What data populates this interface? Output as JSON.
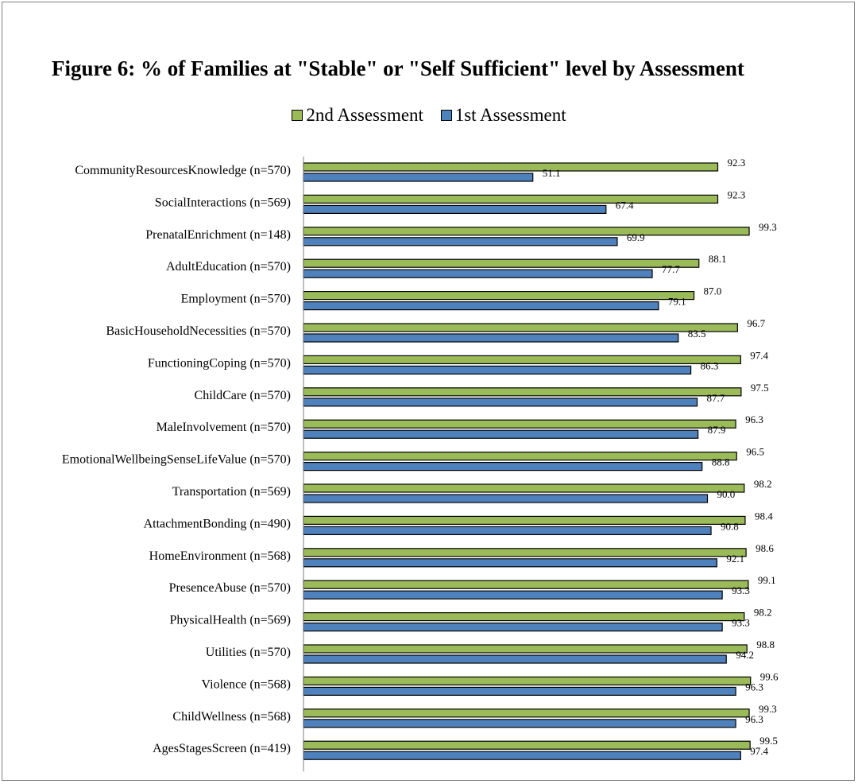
{
  "chart_data": {
    "type": "bar",
    "orientation": "horizontal",
    "title": "Figure 6: % of Families at \"Stable\" or \"Self Sufficient\" level by Assessment",
    "legend_position": "top",
    "xlim": [
      0,
      100
    ],
    "grid": false,
    "categories": [
      "CommunityResourcesKnowledge (n=570)",
      "SocialInteractions (n=569)",
      "PrenatalEnrichment (n=148)",
      "AdultEducation (n=570)",
      "Employment (n=570)",
      "BasicHouseholdNecessities (n=570)",
      "FunctioningCoping (n=570)",
      "ChildCare (n=570)",
      "MaleInvolvement (n=570)",
      "EmotionalWellbeingSenseLifeValue (n=570)",
      "Transportation (n=569)",
      "AttachmentBonding (n=490)",
      "HomeEnvironment (n=568)",
      "PresenceAbuse (n=570)",
      "PhysicalHealth (n=569)",
      "Utilities (n=570)",
      "Violence (n=568)",
      "ChildWellness (n=568)",
      "AgesStagesScreen (n=419)"
    ],
    "series": [
      {
        "name": "2nd Assessment",
        "color": "#9bbb59",
        "values": [
          92.3,
          92.3,
          99.3,
          88.1,
          87.0,
          96.7,
          97.4,
          97.5,
          96.3,
          96.5,
          98.2,
          98.4,
          98.6,
          99.1,
          98.2,
          98.8,
          99.6,
          99.3,
          99.5
        ],
        "labels": [
          "92.3",
          "92.3",
          "99.3",
          "88.1",
          "87.0",
          "96.7",
          "97.4",
          "97.5",
          "96.3",
          "96.5",
          "98.2",
          "98.4",
          "98.6",
          "99.1",
          "98.2",
          "98.8",
          "99.6",
          "99.3",
          "99.5"
        ]
      },
      {
        "name": "1st Assessment",
        "color": "#4f81bd",
        "values": [
          51.1,
          67.4,
          69.9,
          77.7,
          79.1,
          83.5,
          86.3,
          87.7,
          87.9,
          88.8,
          90.0,
          90.8,
          92.1,
          93.3,
          93.3,
          94.2,
          96.3,
          96.3,
          97.4
        ],
        "labels": [
          "51.1",
          "67.4",
          "69.9",
          "77.7",
          "79.1",
          "83.5",
          "86.3",
          "87.7",
          "87.9",
          "88.8",
          "90.0",
          "90.8",
          "92.1",
          "93.3",
          "93.3",
          "94.2",
          "96.3",
          "96.3",
          "97.4"
        ]
      }
    ]
  }
}
